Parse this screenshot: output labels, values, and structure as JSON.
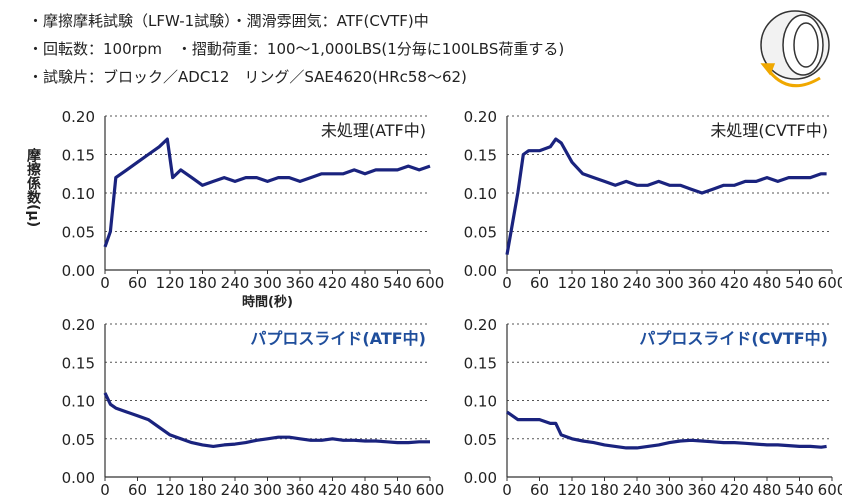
{
  "header": {
    "lines": [
      "・摩擦摩耗試験（LFW-1試験）・潤滑雰囲気：ATF(CVTF)中",
      "・回転数：100rpm　・摺動荷重：100〜1,000LBS(1分毎に100LBS荷重する)",
      "・試験片：ブロック／ADC12　リング／SAE4620(HRc58〜62)"
    ]
  },
  "chart_data": [
    {
      "type": "line",
      "title": "未処理(ATF中)",
      "title_color": "#222222",
      "ylabel": "摩擦係数(μ)",
      "xlabel": "時間(秒)",
      "color": "#1a237e",
      "x": [
        0,
        10,
        20,
        40,
        60,
        80,
        100,
        115,
        125,
        140,
        160,
        180,
        200,
        220,
        240,
        260,
        280,
        300,
        320,
        340,
        360,
        380,
        400,
        420,
        440,
        460,
        480,
        500,
        520,
        540,
        560,
        580,
        600
      ],
      "values": [
        0.03,
        0.05,
        0.12,
        0.13,
        0.14,
        0.15,
        0.16,
        0.17,
        0.12,
        0.13,
        0.12,
        0.11,
        0.115,
        0.12,
        0.115,
        0.12,
        0.12,
        0.115,
        0.12,
        0.12,
        0.115,
        0.12,
        0.125,
        0.125,
        0.125,
        0.13,
        0.125,
        0.13,
        0.13,
        0.13,
        0.135,
        0.13,
        0.135
      ],
      "xlim": [
        0,
        600
      ],
      "xticks": [
        0,
        60,
        120,
        180,
        240,
        300,
        360,
        420,
        480,
        540,
        600
      ],
      "ylim": [
        0,
        0.2
      ],
      "yticks": [
        {
          "value": 0,
          "label": "0.00"
        },
        0.05,
        {
          "value": 0.1,
          "label": "0.10"
        },
        0.15,
        {
          "value": 0.2,
          "label": "0.20"
        }
      ],
      "grid": true
    },
    {
      "type": "line",
      "title": "未処理(CVTF中)",
      "title_color": "#222222",
      "color": "#1a237e",
      "x": [
        0,
        10,
        20,
        30,
        40,
        60,
        80,
        90,
        100,
        120,
        140,
        160,
        180,
        200,
        220,
        240,
        260,
        280,
        300,
        320,
        340,
        360,
        380,
        400,
        420,
        440,
        460,
        480,
        500,
        520,
        540,
        560,
        580,
        590
      ],
      "values": [
        0.02,
        0.06,
        0.1,
        0.15,
        0.155,
        0.155,
        0.16,
        0.17,
        0.165,
        0.14,
        0.125,
        0.12,
        0.115,
        0.11,
        0.115,
        0.11,
        0.11,
        0.115,
        0.11,
        0.11,
        0.105,
        0.1,
        0.105,
        0.11,
        0.11,
        0.115,
        0.115,
        0.12,
        0.115,
        0.12,
        0.12,
        0.12,
        0.125,
        0.125
      ],
      "xlim": [
        0,
        600
      ],
      "xticks": [
        0,
        60,
        120,
        180,
        240,
        300,
        360,
        420,
        480,
        540,
        600
      ],
      "ylim": [
        0,
        0.2
      ],
      "yticks": [
        {
          "value": 0,
          "label": "0.00"
        },
        0.05,
        {
          "value": 0.1,
          "label": "0.10"
        },
        0.15,
        {
          "value": 0.2,
          "label": "0.20"
        }
      ],
      "grid": true
    },
    {
      "type": "line",
      "title": "パプロスライド(ATF中)",
      "title_color": "#1f4e9c",
      "color": "#1a237e",
      "x": [
        0,
        10,
        20,
        40,
        60,
        80,
        100,
        120,
        140,
        160,
        180,
        200,
        220,
        240,
        260,
        280,
        300,
        320,
        340,
        360,
        380,
        400,
        420,
        440,
        460,
        480,
        500,
        520,
        540,
        560,
        580,
        600
      ],
      "values": [
        0.11,
        0.095,
        0.09,
        0.085,
        0.08,
        0.075,
        0.065,
        0.055,
        0.05,
        0.045,
        0.042,
        0.04,
        0.042,
        0.043,
        0.045,
        0.048,
        0.05,
        0.052,
        0.052,
        0.05,
        0.048,
        0.048,
        0.05,
        0.048,
        0.048,
        0.047,
        0.047,
        0.046,
        0.045,
        0.045,
        0.046,
        0.046
      ],
      "xlim": [
        0,
        600
      ],
      "xticks": [
        0,
        60,
        120,
        180,
        240,
        300,
        360,
        420,
        480,
        540,
        600
      ],
      "ylim": [
        0,
        0.2
      ],
      "yticks": [
        {
          "value": 0,
          "label": "0.00"
        },
        0.05,
        {
          "value": 0.1,
          "label": "0.10"
        },
        0.15,
        {
          "value": 0.2,
          "label": "0.20"
        }
      ],
      "grid": true
    },
    {
      "type": "line",
      "title": "パプロスライド(CVTF中)",
      "title_color": "#1f4e9c",
      "color": "#1a237e",
      "x": [
        0,
        20,
        40,
        60,
        80,
        90,
        100,
        120,
        140,
        160,
        180,
        200,
        220,
        240,
        260,
        280,
        300,
        320,
        340,
        360,
        380,
        400,
        420,
        440,
        460,
        480,
        500,
        520,
        540,
        560,
        580,
        590
      ],
      "values": [
        0.085,
        0.075,
        0.075,
        0.075,
        0.07,
        0.07,
        0.055,
        0.05,
        0.047,
        0.045,
        0.042,
        0.04,
        0.038,
        0.038,
        0.04,
        0.042,
        0.045,
        0.047,
        0.048,
        0.047,
        0.046,
        0.045,
        0.045,
        0.044,
        0.043,
        0.042,
        0.042,
        0.041,
        0.04,
        0.04,
        0.039,
        0.04
      ],
      "xlim": [
        0,
        600
      ],
      "xticks": [
        0,
        60,
        120,
        180,
        240,
        300,
        360,
        420,
        480,
        540,
        600
      ],
      "ylim": [
        0,
        0.2
      ],
      "yticks": [
        {
          "value": 0,
          "label": "0.00"
        },
        0.05,
        {
          "value": 0.1,
          "label": "0.10"
        },
        0.15,
        {
          "value": 0.2,
          "label": "0.20"
        }
      ],
      "grid": true
    }
  ]
}
